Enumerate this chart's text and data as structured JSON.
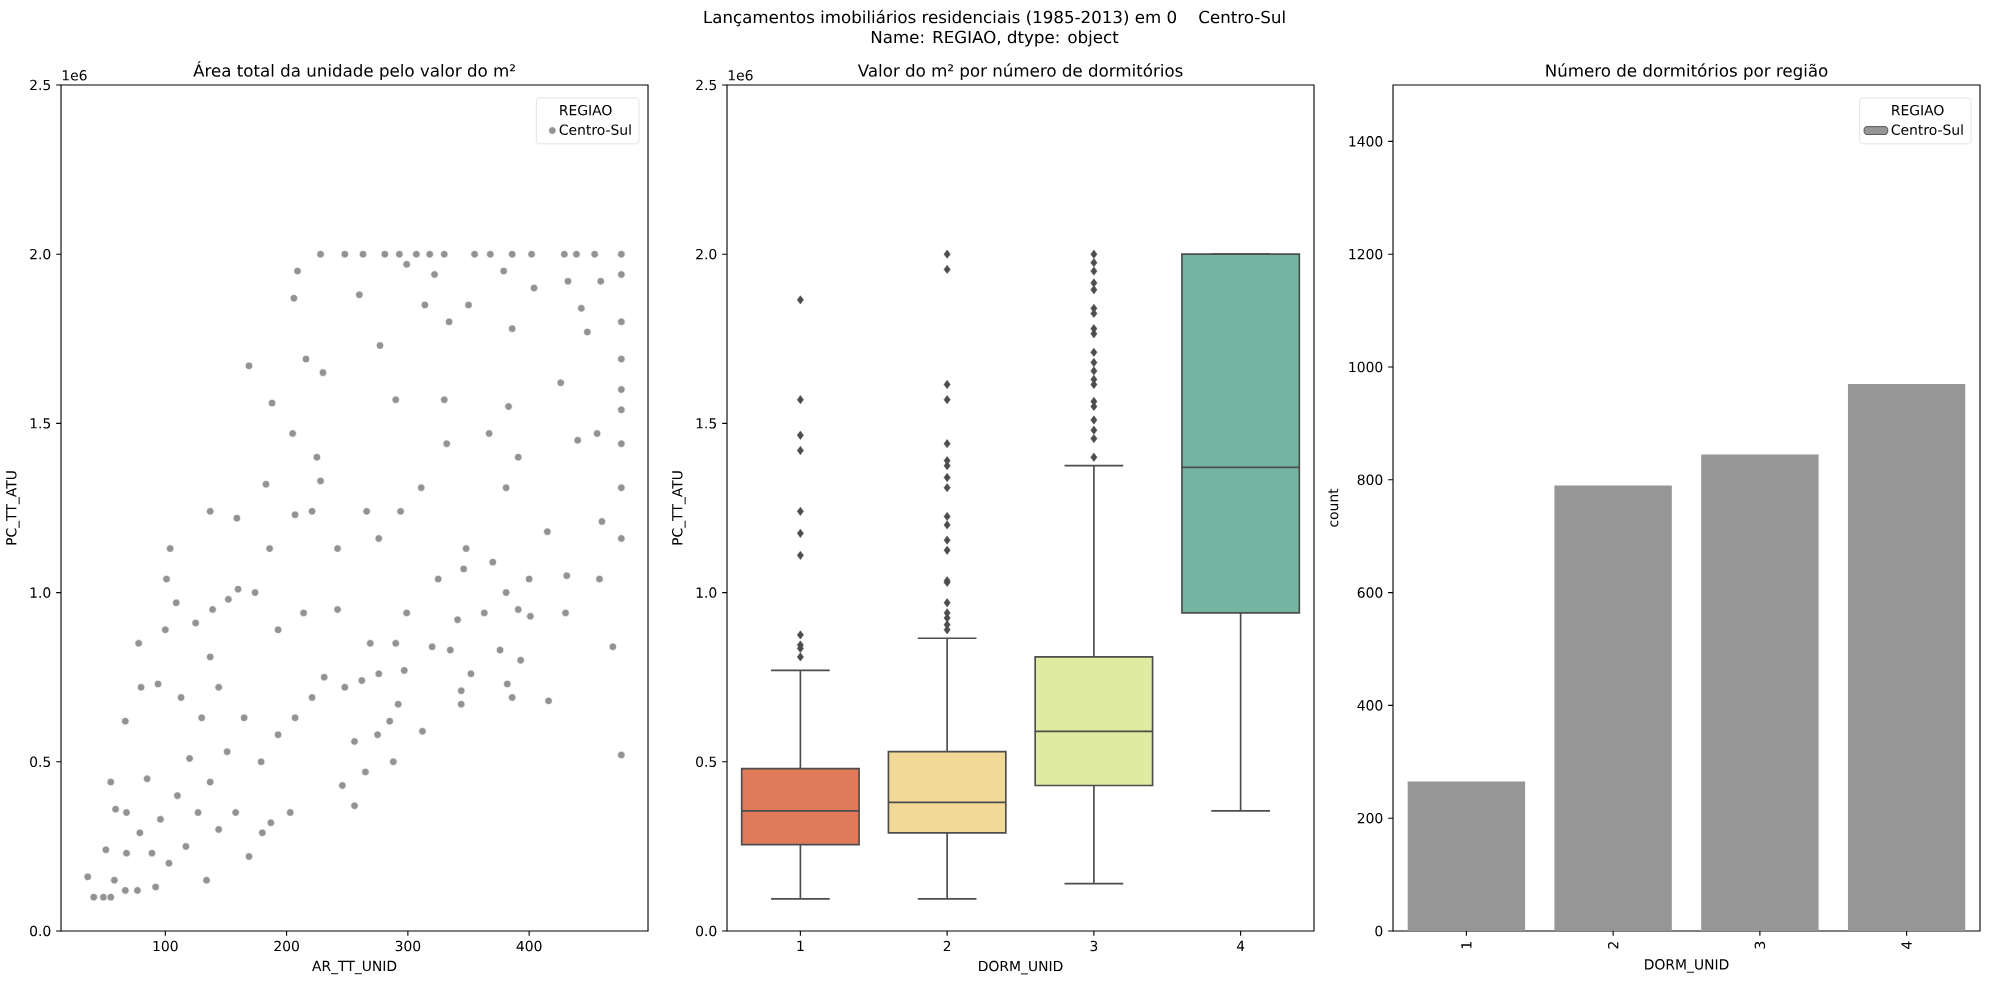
{
  "chart_data": [
    {
      "type": "other",
      "title": "Lançamentos imobiliários residenciais (1985-2013) em 0    Centro-Sul",
      "subtitle": "Name: REGIAO, dtype: object"
    },
    {
      "type": "scatter",
      "title": "Área total da unidade pelo valor do m²",
      "xlabel": "AR_TT_UNID",
      "ylabel": "PC_TT_ATU",
      "legend_title": "REGIAO",
      "legend": "top right",
      "marker": "circle",
      "xlim": [
        14,
        498
      ],
      "xticks": [
        100,
        200,
        300,
        400
      ],
      "ylim": [
        0,
        2.5
      ],
      "yticks": [
        {
          "value": 0,
          "label": "0.0"
        },
        {
          "value": 0.5,
          "label": "0.5"
        },
        {
          "value": 1,
          "label": "1.0"
        },
        {
          "value": 1.5,
          "label": "1.5"
        },
        {
          "value": 2,
          "label": "2.0"
        },
        {
          "value": 2.5,
          "label": "2.5"
        }
      ],
      "annotations": [
        "1e6"
      ],
      "series": [
        {
          "name": "Centro-Sul",
          "color": "#939393",
          "x": [
            36,
            41,
            49,
            55,
            67,
            77,
            92,
            134,
            169,
            180,
            187,
            203,
            256,
            246,
            265,
            288,
            275,
            312,
            416,
            386,
            382,
            344,
            344,
            352,
            476,
            469,
            458,
            431,
            430,
            393,
            376,
            335,
            292,
            285,
            101,
            109,
            100,
            78,
            67,
            80,
            94,
            125,
            139,
            152,
            160,
            174,
            59,
            51,
            58,
            55,
            228,
            248,
            263,
            281,
            293,
            307,
            318,
            330,
            355,
            368,
            386,
            402,
            429,
            439,
            454,
            476,
            476,
            476,
            476,
            476,
            476,
            476,
            476,
            476,
            104,
            137,
            159,
            169,
            188,
            206,
            209,
            216,
            230,
            260,
            299,
            277,
            205,
            183,
            225,
            314,
            322,
            334,
            350,
            379,
            386,
            404,
            432,
            443,
            459,
            448,
            426,
            383,
            330,
            290,
            332,
            367,
            391,
            440,
            456,
            460,
            415,
            381,
            311,
            266,
            221,
            370,
            348,
            207,
            242,
            276,
            294,
            186,
            228,
            325,
            346,
            381,
            400,
            391,
            401,
            363,
            341,
            299,
            290,
            320,
            276,
            297,
            68,
            79,
            89,
            96,
            103,
            110,
            117,
            127,
            120,
            137,
            144,
            158,
            151,
            130,
            113,
            144,
            137,
            165,
            179,
            193,
            207,
            221,
            231,
            248,
            256,
            262,
            193,
            214,
            242,
            269,
            85,
            68
          ],
          "values": [
            0.16,
            0.1,
            0.1,
            0.1,
            0.12,
            0.12,
            0.13,
            0.15,
            0.22,
            0.29,
            0.32,
            0.35,
            0.37,
            0.43,
            0.47,
            0.5,
            0.58,
            0.59,
            0.68,
            0.69,
            0.73,
            0.71,
            0.67,
            0.76,
            0.52,
            0.84,
            1.04,
            1.05,
            0.94,
            0.8,
            0.83,
            0.83,
            0.67,
            0.62,
            1.04,
            0.97,
            0.89,
            0.85,
            0.62,
            0.72,
            0.73,
            0.91,
            0.95,
            0.98,
            1.01,
            1.0,
            0.36,
            0.24,
            0.15,
            0.44,
            2.0,
            2.0,
            2.0,
            2.0,
            2.0,
            2.0,
            2.0,
            2.0,
            2.0,
            2.0,
            2.0,
            2.0,
            2.0,
            2.0,
            2.0,
            2.0,
            1.94,
            1.8,
            1.69,
            1.6,
            1.54,
            1.44,
            1.31,
            1.16,
            1.13,
            1.24,
            1.22,
            1.67,
            1.56,
            1.87,
            1.95,
            1.69,
            1.65,
            1.88,
            1.97,
            1.73,
            1.47,
            1.32,
            1.4,
            1.85,
            1.94,
            1.8,
            1.85,
            1.95,
            1.78,
            1.9,
            1.92,
            1.84,
            1.92,
            1.77,
            1.62,
            1.55,
            1.57,
            1.57,
            1.44,
            1.47,
            1.4,
            1.45,
            1.47,
            1.21,
            1.18,
            1.31,
            1.31,
            1.24,
            1.24,
            1.09,
            1.13,
            1.23,
            1.13,
            1.16,
            1.24,
            1.13,
            1.33,
            1.04,
            1.07,
            1.0,
            1.04,
            0.95,
            0.93,
            0.94,
            0.92,
            0.94,
            0.85,
            0.84,
            0.76,
            0.77,
            0.23,
            0.29,
            0.23,
            0.33,
            0.2,
            0.4,
            0.25,
            0.35,
            0.51,
            0.44,
            0.3,
            0.35,
            0.53,
            0.63,
            0.69,
            0.72,
            0.81,
            0.63,
            0.5,
            0.58,
            0.63,
            0.69,
            0.75,
            0.72,
            0.56,
            0.74,
            0.89,
            0.94,
            0.95,
            0.85,
            0.45,
            0.35
          ]
        }
      ]
    },
    {
      "type": "box",
      "title": "Valor do m² por número de dormitórios",
      "xlabel": "DORM_UNID",
      "ylabel": "PC_TT_ATU",
      "marker": "diamond",
      "categories": [
        "1",
        "2",
        "3",
        "4"
      ],
      "colors": [
        "#e07b5a",
        "#f2d997",
        "#e0eba2",
        "#73b5a1"
      ],
      "ylim": [
        0,
        2.5
      ],
      "yticks": [
        {
          "value": 0,
          "label": "0.0"
        },
        {
          "value": 0.5,
          "label": "0.5"
        },
        {
          "value": 1,
          "label": "1.0"
        },
        {
          "value": 1.5,
          "label": "1.5"
        },
        {
          "value": 2,
          "label": "2.0"
        },
        {
          "value": 2.5,
          "label": "2.5"
        }
      ],
      "annotations": [
        "1e6"
      ],
      "boxes": [
        {
          "low": 0.095,
          "q1": 0.255,
          "median": 0.355,
          "q3": 0.48,
          "high": 0.77,
          "outliers": [
            0.81,
            0.835,
            0.845,
            0.875,
            1.11,
            1.175,
            1.24,
            1.42,
            1.465,
            1.57,
            1.865
          ]
        },
        {
          "low": 0.095,
          "q1": 0.29,
          "median": 0.38,
          "q3": 0.53,
          "high": 0.865,
          "outliers": [
            0.89,
            0.905,
            0.925,
            0.94,
            0.97,
            1.03,
            1.035,
            1.125,
            1.155,
            1.2,
            1.225,
            1.31,
            1.34,
            1.375,
            1.39,
            1.44,
            1.57,
            1.615,
            1.955,
            2.0
          ]
        },
        {
          "low": 0.14,
          "q1": 0.43,
          "median": 0.59,
          "q3": 0.81,
          "high": 1.375,
          "outliers": [
            1.4,
            1.455,
            1.48,
            1.51,
            1.55,
            1.565,
            1.615,
            1.63,
            1.655,
            1.68,
            1.71,
            1.765,
            1.78,
            1.825,
            1.84,
            1.895,
            1.915,
            1.95,
            1.975,
            2.0
          ]
        },
        {
          "low": 0.355,
          "q1": 0.94,
          "median": 1.37,
          "q3": 2.0,
          "high": 2.0
        }
      ]
    },
    {
      "type": "bar",
      "title": "Número de dormitórios por região",
      "xlabel": "DORM_UNID",
      "ylabel": "count",
      "legend_title": "REGIAO",
      "legend": "top right",
      "categories": [
        "1",
        "2",
        "3",
        "4"
      ],
      "ylim": [
        0,
        1500
      ],
      "yticks": [
        0,
        200,
        400,
        600,
        800,
        1000,
        1200,
        1400
      ],
      "series": [
        {
          "name": "Centro-Sul",
          "color": "#969696",
          "values": [
            265,
            790,
            845,
            970
          ]
        }
      ]
    }
  ]
}
